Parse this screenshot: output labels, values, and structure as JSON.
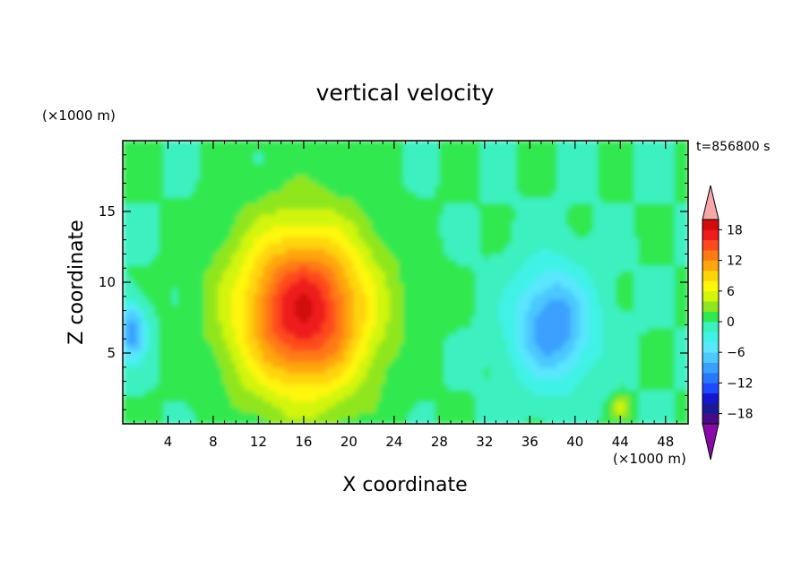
{
  "chart_data": {
    "type": "heatmap",
    "title": "vertical velocity",
    "xlabel": "X coordinate",
    "ylabel": "Z coordinate",
    "x_unit_label": "(×1000 m)",
    "y_unit_label": "(×1000 m)",
    "time_label": "t=856800 s",
    "xlim": [
      0,
      50
    ],
    "ylim": [
      0,
      20
    ],
    "x_ticks": [
      4,
      8,
      12,
      16,
      20,
      24,
      28,
      32,
      36,
      40,
      44,
      48
    ],
    "y_ticks": [
      5,
      10,
      15
    ],
    "colorbar": {
      "levels": [
        -20,
        -18,
        -16,
        -14,
        -12,
        -10,
        -8,
        -6,
        -4,
        -2,
        0,
        2,
        4,
        6,
        8,
        10,
        12,
        14,
        16,
        18,
        20
      ],
      "tick_values": [
        18,
        12,
        6,
        0,
        -6,
        -12,
        -18
      ],
      "tick_labels": [
        "18",
        "12",
        "6",
        "0",
        "−6",
        "−12",
        "−18"
      ],
      "colors": [
        "#4a0a86",
        "#1a1a96",
        "#1616cf",
        "#1e4aff",
        "#2878ff",
        "#3aa0ff",
        "#4cc8ff",
        "#5ae6ff",
        "#40f2e6",
        "#3cf0c0",
        "#30e850",
        "#90e61e",
        "#d2f50a",
        "#fff60a",
        "#ffd40a",
        "#ffa60e",
        "#ff7a12",
        "#ff4a1e",
        "#ee1c1c",
        "#d20c0c"
      ],
      "over_color": "#f5a8a8",
      "under_color": "#8a0aa8"
    },
    "field_features": [
      {
        "kind": "updraft",
        "center": [
          16,
          8
        ],
        "peak": 18,
        "spread_x": 6,
        "spread_z": 6
      },
      {
        "kind": "downdraft",
        "center": [
          38,
          7
        ],
        "peak": -10,
        "spread_x": 3.5,
        "spread_z": 4
      },
      {
        "kind": "downdraft",
        "center": [
          0.8,
          6.5
        ],
        "peak": -10,
        "spread_x": 1.2,
        "spread_z": 2
      },
      {
        "kind": "updraft",
        "center": [
          44,
          1.2
        ],
        "peak": 6,
        "spread_x": 0.8,
        "spread_z": 0.8
      }
    ]
  }
}
